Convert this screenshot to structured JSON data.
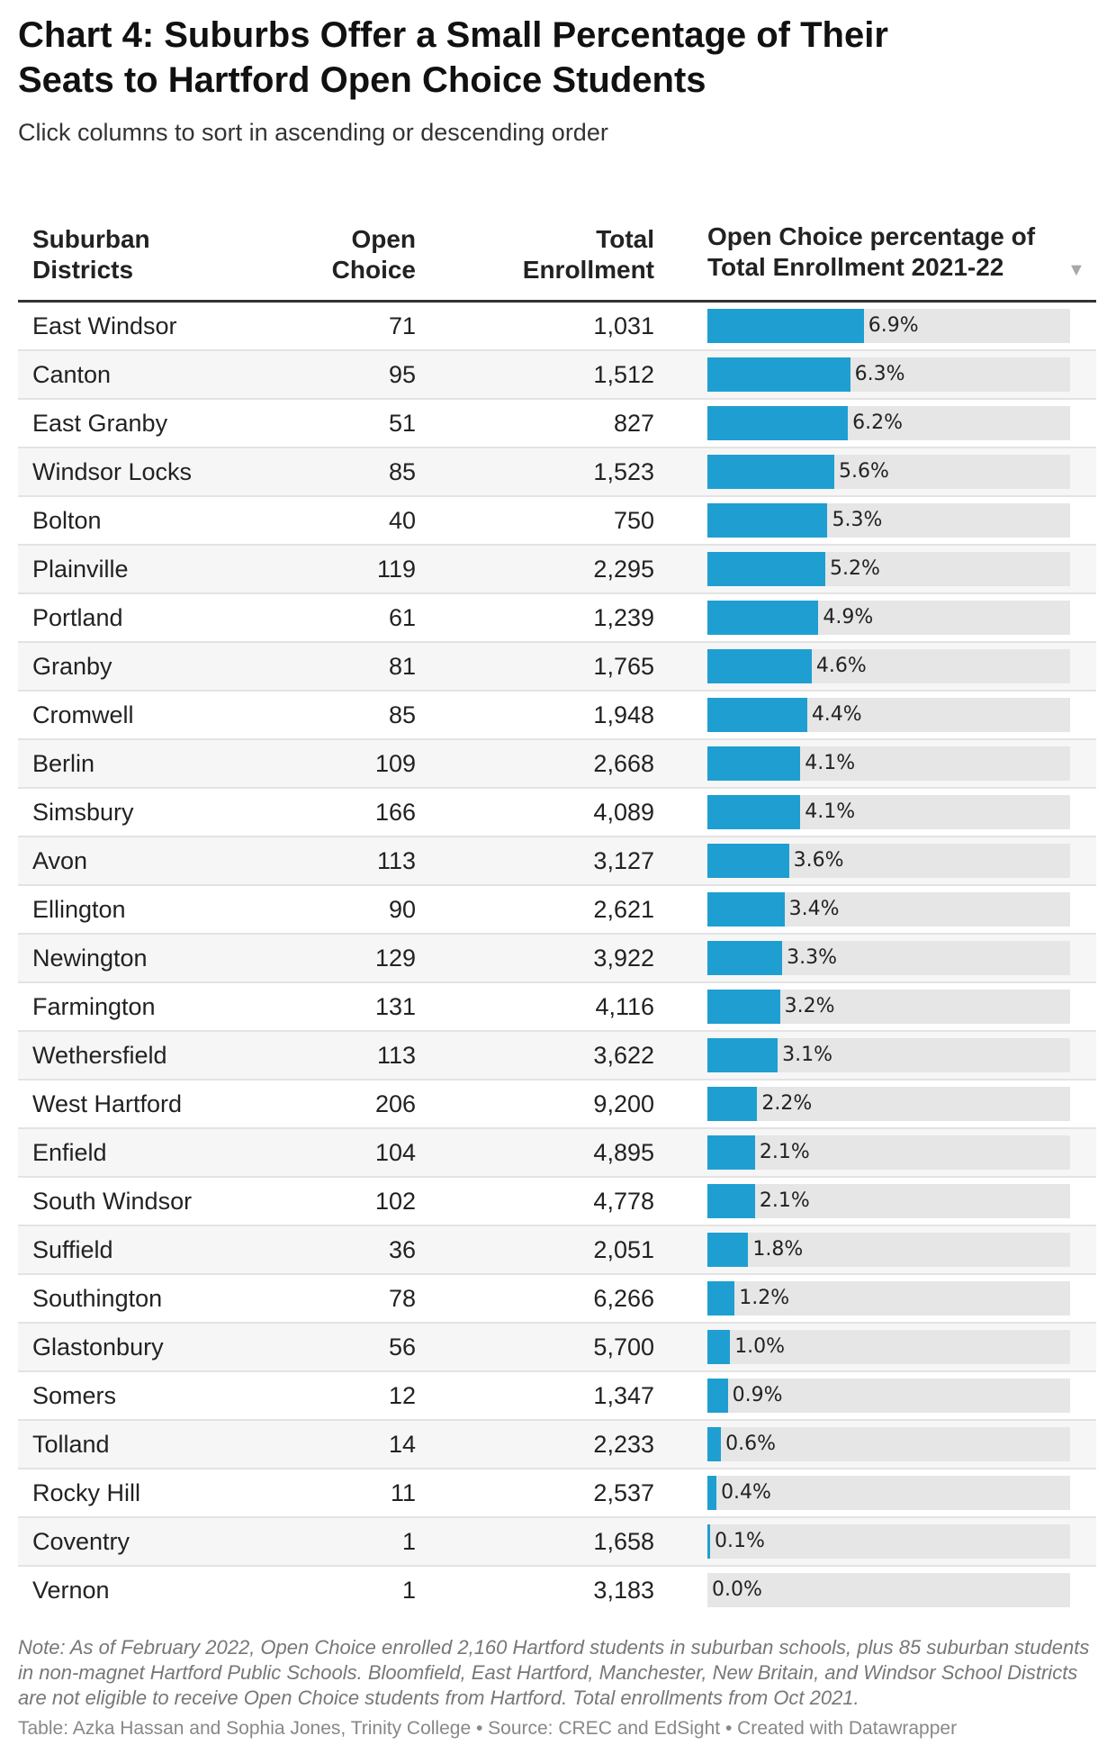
{
  "title": "Chart 4: Suburbs Offer a Small Percentage of Their Seats to Hartford Open Choice Students",
  "subtitle": "Click columns to sort in ascending or descending order",
  "colors": {
    "bar": "#1f9fd1",
    "track": "#e6e6e6"
  },
  "chart_data": {
    "type": "table",
    "columns": [
      "Suburban Districts",
      "Open Choice",
      "Total Enrollment",
      "Open Choice percentage of Total Enrollment 2021-22"
    ],
    "sort": {
      "column": 3,
      "direction": "descending",
      "icon": "sort-descending-icon"
    },
    "bar_max_percent": 100,
    "rows": [
      {
        "district": "East Windsor",
        "open_choice": "71",
        "total": "1,031",
        "pct": 6.9
      },
      {
        "district": "Canton",
        "open_choice": "95",
        "total": "1,512",
        "pct": 6.3
      },
      {
        "district": "East Granby",
        "open_choice": "51",
        "total": "827",
        "pct": 6.2
      },
      {
        "district": "Windsor Locks",
        "open_choice": "85",
        "total": "1,523",
        "pct": 5.6
      },
      {
        "district": "Bolton",
        "open_choice": "40",
        "total": "750",
        "pct": 5.3
      },
      {
        "district": "Plainville",
        "open_choice": "119",
        "total": "2,295",
        "pct": 5.2
      },
      {
        "district": "Portland",
        "open_choice": "61",
        "total": "1,239",
        "pct": 4.9
      },
      {
        "district": "Granby",
        "open_choice": "81",
        "total": "1,765",
        "pct": 4.6
      },
      {
        "district": "Cromwell",
        "open_choice": "85",
        "total": "1,948",
        "pct": 4.4
      },
      {
        "district": "Berlin",
        "open_choice": "109",
        "total": "2,668",
        "pct": 4.1
      },
      {
        "district": "Simsbury",
        "open_choice": "166",
        "total": "4,089",
        "pct": 4.1
      },
      {
        "district": "Avon",
        "open_choice": "113",
        "total": "3,127",
        "pct": 3.6
      },
      {
        "district": "Ellington",
        "open_choice": "90",
        "total": "2,621",
        "pct": 3.4
      },
      {
        "district": "Newington",
        "open_choice": "129",
        "total": "3,922",
        "pct": 3.3
      },
      {
        "district": "Farmington",
        "open_choice": "131",
        "total": "4,116",
        "pct": 3.2
      },
      {
        "district": "Wethersfield",
        "open_choice": "113",
        "total": "3,622",
        "pct": 3.1
      },
      {
        "district": "West Hartford",
        "open_choice": "206",
        "total": "9,200",
        "pct": 2.2
      },
      {
        "district": "Enfield",
        "open_choice": "104",
        "total": "4,895",
        "pct": 2.1
      },
      {
        "district": "South Windsor",
        "open_choice": "102",
        "total": "4,778",
        "pct": 2.1
      },
      {
        "district": "Suffield",
        "open_choice": "36",
        "total": "2,051",
        "pct": 1.8
      },
      {
        "district": "Southington",
        "open_choice": "78",
        "total": "6,266",
        "pct": 1.2
      },
      {
        "district": "Glastonbury",
        "open_choice": "56",
        "total": "5,700",
        "pct": 1.0
      },
      {
        "district": "Somers",
        "open_choice": "12",
        "total": "1,347",
        "pct": 0.9
      },
      {
        "district": "Tolland",
        "open_choice": "14",
        "total": "2,233",
        "pct": 0.6
      },
      {
        "district": "Rocky Hill",
        "open_choice": "11",
        "total": "2,537",
        "pct": 0.4
      },
      {
        "district": "Coventry",
        "open_choice": "1",
        "total": "1,658",
        "pct": 0.1
      },
      {
        "district": "Vernon",
        "open_choice": "1",
        "total": "3,183",
        "pct": 0.0
      }
    ]
  },
  "notes": "Note: As of February 2022, Open Choice enrolled 2,160 Hartford students in suburban schools, plus 85 suburban students in non-magnet Hartford Public Schools. Bloomfield, East Hartford, Manchester, New Britain, and Windsor School Districts are not eligible to receive Open Choice students from Hartford. Total enrollments from Oct 2021.",
  "credit": "Table: Azka Hassan and Sophia Jones, Trinity College • Source: CREC and EdSight • Created with Datawrapper"
}
